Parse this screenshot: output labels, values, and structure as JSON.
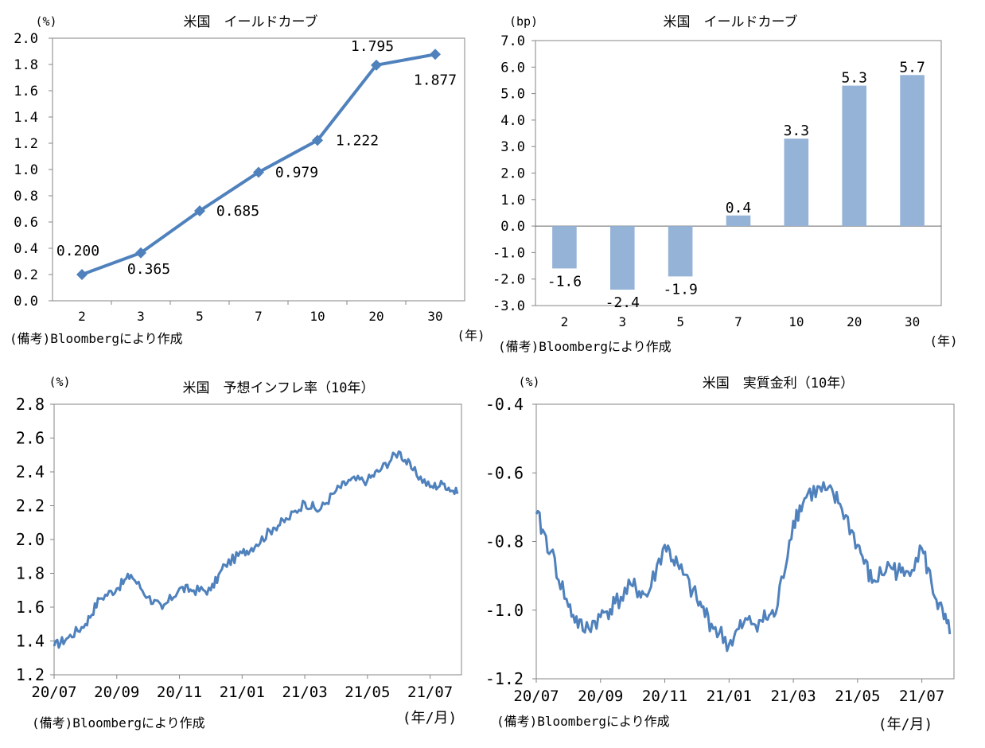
{
  "colors": {
    "line": "#4f81bd",
    "bar": "#95b3d7",
    "axis": "#868686",
    "text": "#000000"
  },
  "chart_data": [
    {
      "type": "line",
      "title": "米国　イールドカーブ",
      "unit": "(%)",
      "xunit": "(年)",
      "note": "(備考)Bloombergにより作成",
      "categories": [
        "2",
        "3",
        "5",
        "7",
        "10",
        "20",
        "30"
      ],
      "values": [
        0.2,
        0.365,
        0.685,
        0.979,
        1.222,
        1.795,
        1.877
      ],
      "value_labels": [
        "0.200",
        "0.365",
        "0.685",
        "0.979",
        "1.222",
        "1.795",
        "1.877"
      ],
      "ylim": [
        0.0,
        2.0
      ],
      "ytick_labels": [
        "0.0",
        "0.2",
        "0.4",
        "0.6",
        "0.8",
        "1.0",
        "1.2",
        "1.4",
        "1.6",
        "1.8",
        "2.0"
      ],
      "marker": "diamond",
      "grid": false
    },
    {
      "type": "bar",
      "title": "米国　イールドカーブ",
      "unit": "(bp)",
      "xunit": "(年)",
      "note": "(備考)Bloombergにより作成",
      "categories": [
        "2",
        "3",
        "5",
        "7",
        "10",
        "20",
        "30"
      ],
      "values": [
        -1.6,
        -2.4,
        -1.9,
        0.4,
        3.3,
        5.3,
        5.7
      ],
      "value_labels": [
        "-1.6",
        "-2.4",
        "-1.9",
        "0.4",
        "3.3",
        "5.3",
        "5.7"
      ],
      "ylim": [
        -3.0,
        7.0
      ],
      "ytick_labels": [
        "-3.0",
        "-2.0",
        "-1.0",
        "0.0",
        "1.0",
        "2.0",
        "3.0",
        "4.0",
        "5.0",
        "6.0",
        "7.0"
      ],
      "grid": false
    },
    {
      "type": "line",
      "title": "米国　予想インフレ率（10年）",
      "unit": "(%)",
      "xunit": "(年/月)",
      "note": "(備考)Bloombergにより作成",
      "xtick_labels": [
        "20/07",
        "20/09",
        "20/11",
        "21/01",
        "21/03",
        "21/05",
        "21/07"
      ],
      "xrange": [
        "2020-07",
        "2021-08"
      ],
      "ylim": [
        1.2,
        2.8
      ],
      "ytick_labels": [
        "1.2",
        "1.4",
        "1.6",
        "1.8",
        "2.0",
        "2.2",
        "2.4",
        "2.6",
        "2.8"
      ],
      "x": [
        "2020-07",
        "2020-07-15",
        "2020-08",
        "2020-08-15",
        "2020-09",
        "2020-09-15",
        "2020-10",
        "2020-10-15",
        "2020-11",
        "2020-11-15",
        "2020-12",
        "2020-12-15",
        "2021-01",
        "2021-01-15",
        "2021-02",
        "2021-02-15",
        "2021-03",
        "2021-03-15",
        "2021-04",
        "2021-04-15",
        "2021-05",
        "2021-05-15",
        "2021-06",
        "2021-06-15",
        "2021-07",
        "2021-07-15",
        "2021-07-28"
      ],
      "values": [
        1.37,
        1.42,
        1.5,
        1.65,
        1.71,
        1.79,
        1.66,
        1.59,
        1.71,
        1.7,
        1.7,
        1.85,
        1.92,
        1.97,
        2.07,
        2.12,
        2.22,
        2.17,
        2.29,
        2.35,
        2.35,
        2.42,
        2.52,
        2.41,
        2.31,
        2.33,
        2.27
      ],
      "grid": false
    },
    {
      "type": "line",
      "title": "米国　実質金利（10年）",
      "unit": "(%)",
      "xunit": "(年/月)",
      "note": "(備考)Bloombergにより作成",
      "xtick_labels": [
        "20/07",
        "20/09",
        "20/11",
        "21/01",
        "21/03",
        "21/05",
        "21/07"
      ],
      "xrange": [
        "2020-07",
        "2021-08"
      ],
      "ylim": [
        -1.2,
        -0.4
      ],
      "ytick_labels": [
        "-1.2",
        "-1.0",
        "-0.8",
        "-0.6",
        "-0.4"
      ],
      "x": [
        "2020-07",
        "2020-07-15",
        "2020-08",
        "2020-08-15",
        "2020-09",
        "2020-09-15",
        "2020-10",
        "2020-10-15",
        "2020-11",
        "2020-11-15",
        "2020-12",
        "2020-12-15",
        "2021-01",
        "2021-01-15",
        "2021-02",
        "2021-02-15",
        "2021-03",
        "2021-03-15",
        "2021-04",
        "2021-04-15",
        "2021-05",
        "2021-05-15",
        "2021-06",
        "2021-06-15",
        "2021-07",
        "2021-07-15",
        "2021-07-28"
      ],
      "values": [
        -0.72,
        -0.83,
        -0.99,
        -1.06,
        -1.02,
        -0.98,
        -0.93,
        -0.96,
        -0.81,
        -0.88,
        -0.97,
        -1.04,
        -1.1,
        -1.04,
        -1.03,
        -1.01,
        -0.74,
        -0.66,
        -0.65,
        -0.69,
        -0.81,
        -0.92,
        -0.87,
        -0.9,
        -0.82,
        -0.97,
        -1.07
      ],
      "grid": false
    }
  ]
}
